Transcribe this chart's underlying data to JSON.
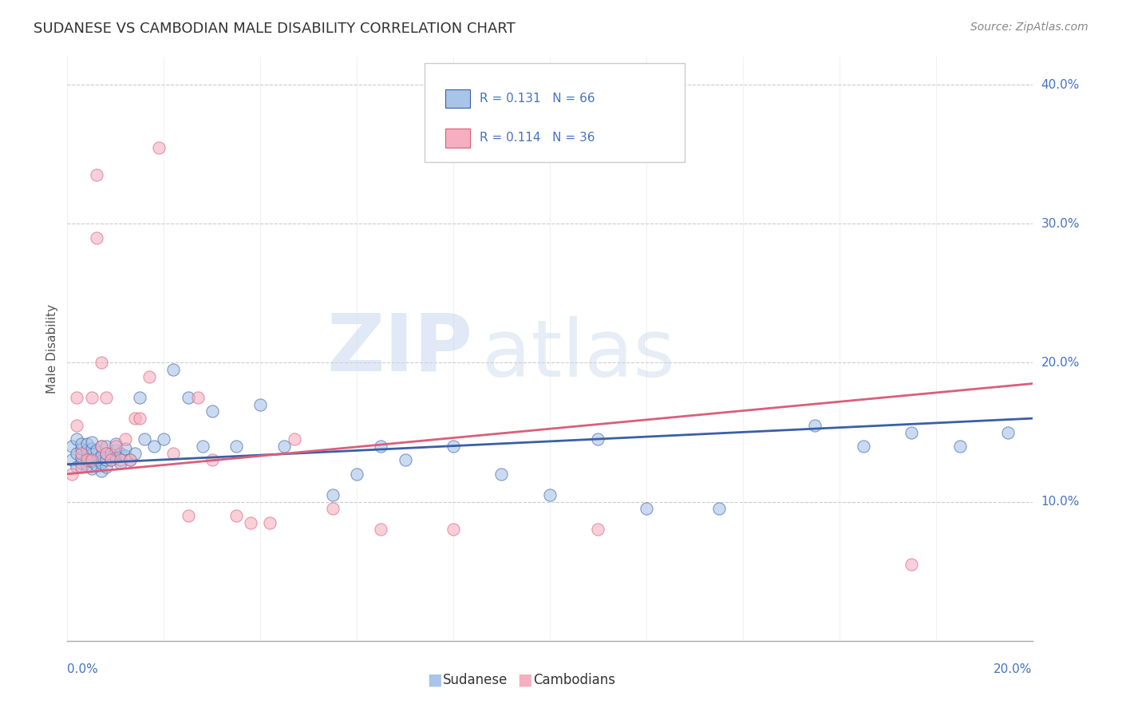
{
  "title": "SUDANESE VS CAMBODIAN MALE DISABILITY CORRELATION CHART",
  "source": "Source: ZipAtlas.com",
  "ylabel": "Male Disability",
  "legend_labels": [
    "Sudanese",
    "Cambodians"
  ],
  "legend_r": [
    0.131,
    0.114
  ],
  "legend_n": [
    66,
    36
  ],
  "sudanese_color": "#a8c4e8",
  "cambodian_color": "#f5afc0",
  "sudanese_line_color": "#3a5fa8",
  "cambodian_line_color": "#d95f7a",
  "title_color": "#333333",
  "source_color": "#888888",
  "legend_text_color": "#4472c4",
  "background_color": "#ffffff",
  "grid_color": "#cccccc",
  "xmin": 0.0,
  "xmax": 0.2,
  "ymin": 0.0,
  "ymax": 0.42,
  "yticks": [
    0.1,
    0.2,
    0.3,
    0.4
  ],
  "ytick_labels": [
    "10.0%",
    "20.0%",
    "30.0%",
    "40.0%"
  ],
  "sudanese_x": [
    0.001,
    0.001,
    0.002,
    0.002,
    0.002,
    0.003,
    0.003,
    0.003,
    0.003,
    0.004,
    0.004,
    0.004,
    0.004,
    0.005,
    0.005,
    0.005,
    0.005,
    0.005,
    0.006,
    0.006,
    0.006,
    0.007,
    0.007,
    0.007,
    0.007,
    0.008,
    0.008,
    0.008,
    0.008,
    0.009,
    0.009,
    0.01,
    0.01,
    0.01,
    0.011,
    0.011,
    0.012,
    0.012,
    0.013,
    0.014,
    0.015,
    0.016,
    0.018,
    0.02,
    0.022,
    0.025,
    0.028,
    0.03,
    0.035,
    0.04,
    0.045,
    0.055,
    0.06,
    0.065,
    0.07,
    0.08,
    0.09,
    0.1,
    0.11,
    0.12,
    0.135,
    0.155,
    0.165,
    0.175,
    0.185,
    0.195
  ],
  "sudanese_y": [
    0.13,
    0.14,
    0.125,
    0.135,
    0.145,
    0.128,
    0.132,
    0.138,
    0.142,
    0.126,
    0.132,
    0.137,
    0.142,
    0.124,
    0.129,
    0.134,
    0.138,
    0.143,
    0.126,
    0.131,
    0.137,
    0.122,
    0.128,
    0.133,
    0.14,
    0.125,
    0.13,
    0.135,
    0.14,
    0.13,
    0.135,
    0.132,
    0.137,
    0.142,
    0.128,
    0.135,
    0.133,
    0.138,
    0.13,
    0.135,
    0.175,
    0.145,
    0.14,
    0.145,
    0.195,
    0.175,
    0.14,
    0.165,
    0.14,
    0.17,
    0.14,
    0.105,
    0.12,
    0.14,
    0.13,
    0.14,
    0.12,
    0.105,
    0.145,
    0.095,
    0.095,
    0.155,
    0.14,
    0.15,
    0.14,
    0.15
  ],
  "cambodian_x": [
    0.001,
    0.002,
    0.002,
    0.003,
    0.003,
    0.004,
    0.005,
    0.005,
    0.006,
    0.006,
    0.007,
    0.007,
    0.008,
    0.008,
    0.009,
    0.01,
    0.011,
    0.012,
    0.013,
    0.014,
    0.015,
    0.017,
    0.019,
    0.022,
    0.025,
    0.027,
    0.03,
    0.035,
    0.038,
    0.042,
    0.047,
    0.055,
    0.065,
    0.08,
    0.11,
    0.175
  ],
  "cambodian_y": [
    0.12,
    0.155,
    0.175,
    0.125,
    0.135,
    0.13,
    0.13,
    0.175,
    0.335,
    0.29,
    0.14,
    0.2,
    0.135,
    0.175,
    0.13,
    0.14,
    0.13,
    0.145,
    0.13,
    0.16,
    0.16,
    0.19,
    0.355,
    0.135,
    0.09,
    0.175,
    0.13,
    0.09,
    0.085,
    0.085,
    0.145,
    0.095,
    0.08,
    0.08,
    0.08,
    0.055
  ],
  "trend_sudanese_x0": 0.0,
  "trend_sudanese_y0": 0.127,
  "trend_sudanese_x1": 0.2,
  "trend_sudanese_y1": 0.16,
  "trend_cambodian_x0": 0.0,
  "trend_cambodian_y0": 0.12,
  "trend_cambodian_x1": 0.2,
  "trend_cambodian_y1": 0.185
}
